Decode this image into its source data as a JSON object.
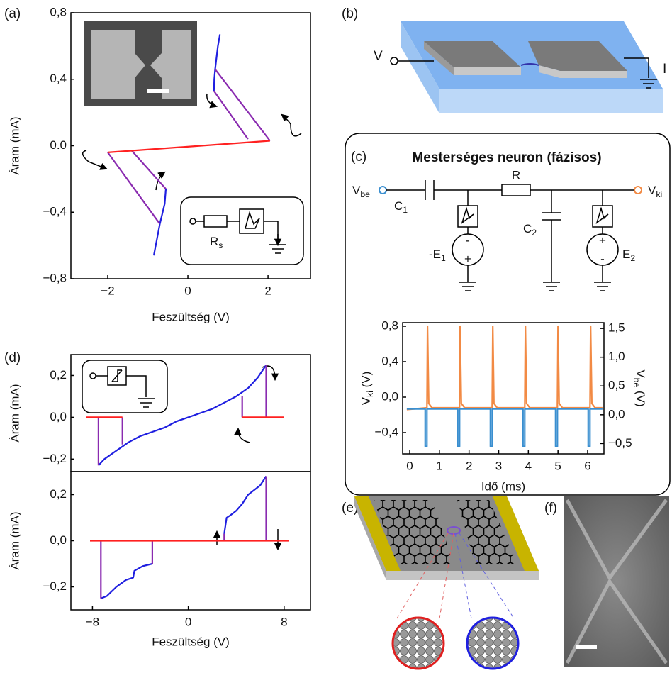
{
  "panel_labels": [
    "(a)",
    "(b)",
    "(c)",
    "(d)",
    "(e)",
    "(f)"
  ],
  "panel_a_inset": {
    "resistor": [
      "R",
      "s"
    ]
  },
  "panel_b": {
    "voltage": "V",
    "current": "I"
  },
  "panel_c_circuit": {
    "title": "Mesterséges neuron (fázisos)",
    "input": [
      "V",
      "be"
    ],
    "output": [
      "V",
      "ki"
    ],
    "c1": [
      "C",
      "1"
    ],
    "r": "R",
    "c2": [
      "C",
      "2"
    ],
    "e1": [
      "-E",
      "1"
    ],
    "e2": [
      "E",
      "2"
    ],
    "signs": [
      "-",
      "+",
      "+",
      "-"
    ]
  },
  "chart_data": [
    {
      "type": "line",
      "xlabel": "Feszültség (V)",
      "ylabel": "Áram (mA)",
      "xlim": [
        -2.92,
        3.06
      ],
      "ylim": [
        -0.8,
        0.8
      ],
      "xticks": [
        {
          "value": -2,
          "label": "−2"
        },
        0,
        2
      ],
      "yticks": [
        {
          "value": -0.8,
          "label": "−0,8"
        },
        {
          "value": -0.4,
          "label": "−0,4"
        },
        {
          "value": 0,
          "label": "0.0"
        },
        {
          "value": 0.4,
          "label": "0,4"
        },
        {
          "value": 0.8,
          "label": "0,8"
        }
      ],
      "series": [
        {
          "color": "#1f1fe0",
          "x": [
            0.8,
            0.75,
            0.68,
            0.66,
            0.65,
            null,
            -0.55,
            -0.58,
            -0.7,
            -0.85
          ],
          "values": [
            0.67,
            0.6,
            0.46,
            0.4,
            0.33,
            null,
            -0.26,
            -0.35,
            -0.47,
            -0.66
          ]
        },
        {
          "color": "#8a2bb0",
          "x": [
            0.68,
            2.05,
            null,
            0.65,
            1.5,
            null,
            -2.0,
            -0.7,
            null,
            -1.4,
            -0.55
          ],
          "values": [
            0.46,
            0.03,
            null,
            0.33,
            0.04,
            null,
            -0.04,
            -0.47,
            null,
            -0.03,
            -0.26
          ]
        },
        {
          "color": "#ff2020",
          "x": [
            2.05,
            -2.0
          ],
          "values": [
            0.03,
            -0.04
          ]
        }
      ]
    },
    {
      "type": "line",
      "xlabel": "Idő (ms)",
      "ylabel": [
        "V",
        "ki",
        " (V)"
      ],
      "y2label": [
        "V",
        "be",
        " (V)"
      ],
      "xlim": [
        -0.24,
        6.55
      ],
      "ylim": [
        -0.64,
        0.84
      ],
      "y2lim": [
        -0.68,
        1.6
      ],
      "xticks": [
        0,
        1,
        2,
        3,
        4,
        5,
        6
      ],
      "yticks": [
        {
          "value": -0.4,
          "label": "−0,4"
        },
        {
          "value": 0,
          "label": "0,0"
        },
        {
          "value": 0.4,
          "label": "0,4"
        },
        {
          "value": 0.8,
          "label": "0,8"
        }
      ],
      "y2ticks": [
        {
          "value": -0.5,
          "label": "−0,5"
        },
        {
          "value": 0,
          "label": "0,0"
        },
        {
          "value": 0.5,
          "label": "0,5"
        },
        {
          "value": 1,
          "label": "1,0"
        },
        {
          "value": 1.5,
          "label": "1,5"
        }
      ],
      "ylabel_color": "#f28a44",
      "y2label_color": "#3a8fd0",
      "series": [
        {
          "color": "#f28a44",
          "x": [
            -0.1,
            0.58,
            0.6,
            0.64,
            0.75,
            1.68,
            1.7,
            1.74,
            1.85,
            2.78,
            2.8,
            2.84,
            2.95,
            3.88,
            3.9,
            3.94,
            4.05,
            4.98,
            5.0,
            5.04,
            5.15,
            6.08,
            6.1,
            6.14,
            6.25,
            6.5
          ],
          "values": [
            -0.14,
            -0.12,
            0.8,
            -0.07,
            -0.12,
            -0.12,
            0.8,
            -0.07,
            -0.12,
            -0.12,
            0.8,
            -0.07,
            -0.12,
            -0.12,
            0.8,
            -0.07,
            -0.12,
            -0.12,
            0.8,
            -0.07,
            -0.12,
            -0.12,
            0.8,
            -0.07,
            -0.12,
            -0.12
          ]
        },
        {
          "color": "#3a8fd0",
          "axis": "y2",
          "x": [
            -0.1,
            0.52,
            0.52,
            0.58,
            0.58,
            1.62,
            1.62,
            1.68,
            1.68,
            2.72,
            2.72,
            2.78,
            2.78,
            3.82,
            3.82,
            3.88,
            3.88,
            4.92,
            4.92,
            4.98,
            4.98,
            6.02,
            6.02,
            6.08,
            6.08,
            6.5
          ],
          "values": [
            0.1,
            0.1,
            -0.55,
            -0.55,
            0.1,
            0.1,
            -0.55,
            -0.55,
            0.1,
            0.1,
            -0.55,
            -0.55,
            0.1,
            0.1,
            -0.55,
            -0.55,
            0.1,
            0.1,
            -0.55,
            -0.55,
            0.1,
            0.1,
            -0.55,
            -0.55,
            0.1,
            0.1
          ]
        }
      ]
    },
    {
      "type": "line",
      "ylabel": "Áram (mA)",
      "xlim": [
        -9.8,
        10.2
      ],
      "ylim": [
        -0.26,
        0.3
      ],
      "yticks": [
        {
          "value": -0.2,
          "label": "−0,2"
        },
        {
          "value": 0,
          "label": "0,0"
        },
        {
          "value": 0.2,
          "label": "0,2"
        }
      ],
      "series": [
        {
          "color": "#1f1fe0",
          "x": [
            -7.5,
            -7,
            -6,
            -5,
            -4,
            -3,
            -2,
            -1,
            0,
            1,
            2,
            3,
            4,
            5,
            5.8,
            6.5
          ],
          "values": [
            -0.23,
            -0.2,
            -0.16,
            -0.12,
            -0.09,
            -0.07,
            -0.05,
            -0.02,
            0,
            0.02,
            0.04,
            0.07,
            0.1,
            0.14,
            0.19,
            0.25
          ]
        },
        {
          "color": "#8a2bb0",
          "x": [
            -7.5,
            -7.5,
            null,
            -5.5,
            -5.5,
            null,
            4.5,
            4.5,
            null,
            6.5,
            6.5
          ],
          "values": [
            0,
            -0.23,
            null,
            0,
            -0.13,
            null,
            0,
            0.1,
            null,
            0.25,
            0
          ]
        },
        {
          "color": "#ff2020",
          "x": [
            -8.5,
            -5.5,
            null,
            4.5,
            8
          ],
          "values": [
            0,
            0,
            null,
            0,
            0
          ]
        }
      ]
    },
    {
      "type": "line",
      "xlabel": "Feszültség (V)",
      "ylabel": "Áram (mA)",
      "xlim": [
        -9.8,
        10.2
      ],
      "ylim": [
        -0.3,
        0.3
      ],
      "xticks": [
        {
          "value": -8,
          "label": "−8"
        },
        0,
        8
      ],
      "yticks": [
        {
          "value": -0.2,
          "label": "−0,2"
        },
        {
          "value": 0,
          "label": "0,0"
        },
        {
          "value": 0.2,
          "label": "0,2"
        }
      ],
      "series": [
        {
          "color": "#1f1fe0",
          "x": [
            -7.3,
            -6.8,
            -6,
            -5.2,
            -4.6,
            -4.5,
            -3.8,
            -3,
            null,
            3,
            3.2,
            3.5,
            4,
            4.5,
            5,
            5.5,
            6,
            6.5
          ],
          "values": [
            -0.25,
            -0.24,
            -0.2,
            -0.17,
            -0.16,
            -0.13,
            -0.11,
            -0.1,
            null,
            0.03,
            0.1,
            0.11,
            0.13,
            0.16,
            0.2,
            0.22,
            0.24,
            0.28
          ]
        },
        {
          "color": "#8a2bb0",
          "x": [
            -7.3,
            -7.3,
            null,
            -3,
            -3,
            null,
            3,
            3,
            null,
            6.5,
            6.5
          ],
          "values": [
            0,
            -0.25,
            null,
            0,
            -0.1,
            null,
            0,
            0.03,
            null,
            0.28,
            0
          ]
        },
        {
          "color": "#ff2020",
          "x": [
            -8.2,
            8.4
          ],
          "values": [
            0,
            0
          ]
        }
      ]
    }
  ]
}
